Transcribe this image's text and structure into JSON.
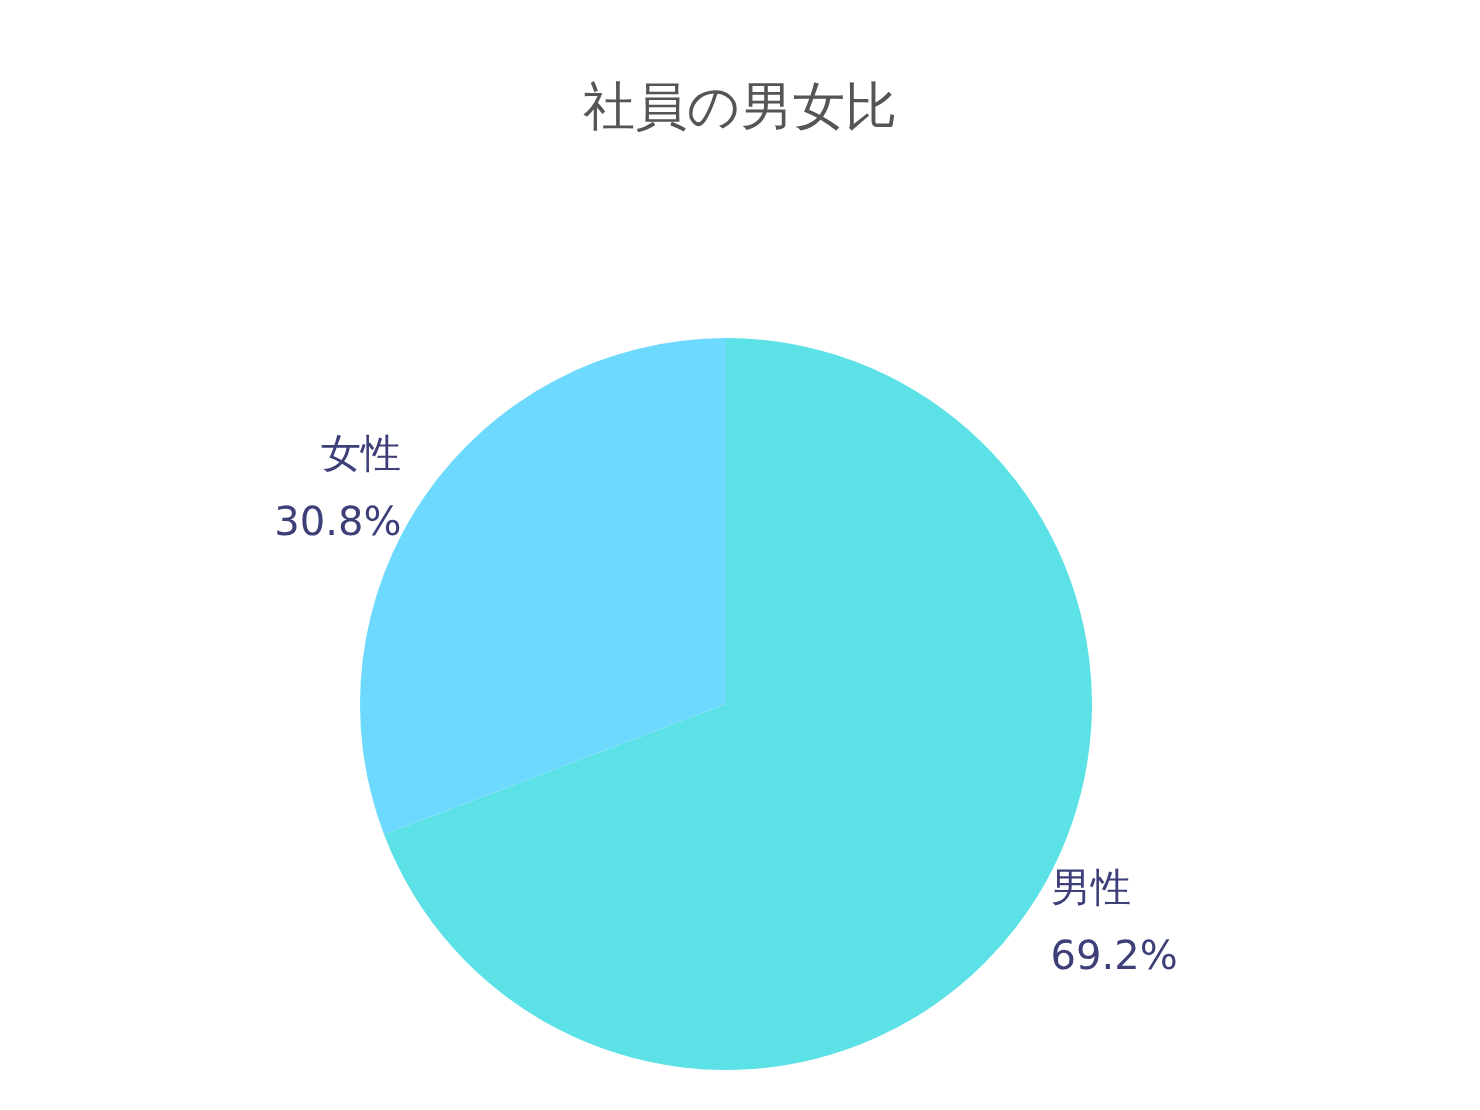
{
  "chart_data": {
    "type": "pie",
    "title": "社員の男女比",
    "categories": [
      "男性",
      "女性"
    ],
    "values": [
      69.2,
      30.8
    ],
    "value_labels": [
      "69.2%",
      "30.8%"
    ],
    "colors": [
      "#5ce1e6",
      "#6dd9fe"
    ],
    "legend": false
  }
}
